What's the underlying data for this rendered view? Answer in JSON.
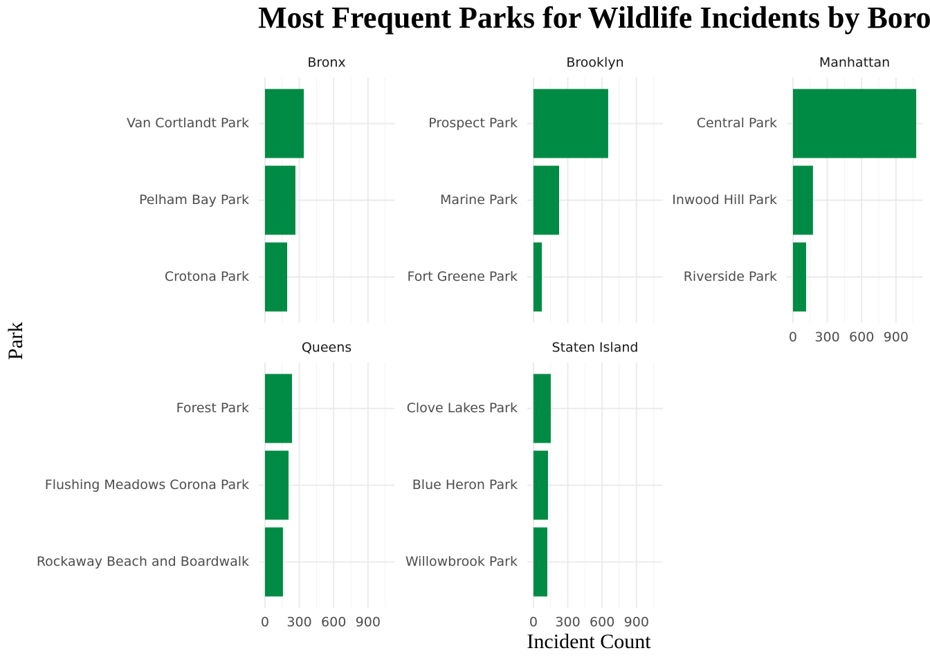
{
  "chart_data": {
    "type": "bar",
    "orientation": "horizontal",
    "title": "Most Frequent Parks for Wildlife Incidents by Borough",
    "x_label": "Incident Count",
    "y_label": "Park",
    "color": "#008b45",
    "grid": true,
    "xlim": [
      -54,
      1131
    ],
    "xticks": [
      0,
      300,
      600,
      900
    ],
    "facets": [
      {
        "name": "Bronx",
        "categories": [
          "Van Cortlandt Park",
          "Pelham Bay Park",
          "Crotona Park"
        ],
        "values": [
          339,
          266,
          194
        ]
      },
      {
        "name": "Brooklyn",
        "categories": [
          "Prospect Park",
          "Marine Park",
          "Fort Greene Park"
        ],
        "values": [
          653,
          224,
          73
        ]
      },
      {
        "name": "Manhattan",
        "categories": [
          "Central Park",
          "Inwood Hill Park",
          "Riverside Park"
        ],
        "values": [
          1077,
          175,
          115
        ]
      },
      {
        "name": "Queens",
        "categories": [
          "Forest Park",
          "Flushing Meadows Corona Park",
          "Rockaway Beach and Boardwalk"
        ],
        "values": [
          236,
          206,
          157
        ]
      },
      {
        "name": "Staten Island",
        "categories": [
          "Clove Lakes Park",
          "Blue Heron Park",
          "Willowbrook Park"
        ],
        "values": [
          151,
          127,
          121
        ]
      }
    ]
  }
}
